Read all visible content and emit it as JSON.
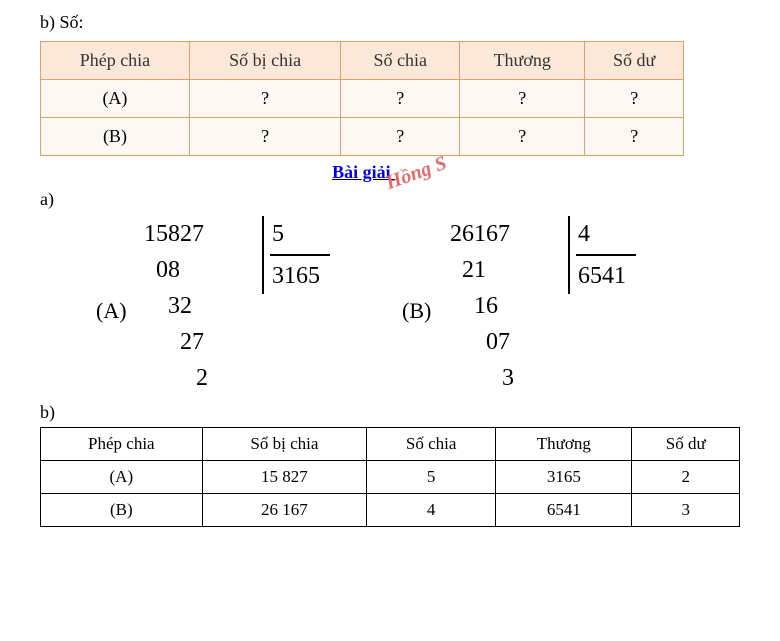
{
  "top_label": "b) Số:",
  "table1": {
    "header_bg": "#fbe8d8",
    "border_color": "#d9a36a",
    "row_bg": "#fdf8f4",
    "headers": [
      "Phép chia",
      "Số bị chia",
      "Số chia",
      "Thương",
      "Số dư"
    ],
    "rows": [
      [
        "(A)",
        "?",
        "?",
        "?",
        "?"
      ],
      [
        "(B)",
        "?",
        "?",
        "?",
        "?"
      ]
    ]
  },
  "bai_giai_label": "Bài giải",
  "bai_giai_color": "#0000ee",
  "watermark_text": "Hồng S",
  "label_a": "a)",
  "divisions": {
    "A": {
      "tag": "(A)",
      "dividend": "15827",
      "divisor": "5",
      "quotient": "3165",
      "steps": [
        "08",
        "32",
        "27",
        "2"
      ],
      "indents": [
        "indent1",
        "indent2",
        "indent3",
        "indent4"
      ]
    },
    "B": {
      "tag": "(B)",
      "dividend": "26167",
      "divisor": "4",
      "quotient": "6541",
      "steps": [
        "21",
        "16",
        "07",
        "3"
      ],
      "indents": [
        "indent1",
        "indent2",
        "indent3",
        "indent4"
      ]
    }
  },
  "label_b2": "b)",
  "table2": {
    "headers": [
      "Phép chia",
      "Số bị chia",
      "Số chia",
      "Thương",
      "Số dư"
    ],
    "rows": [
      [
        "(A)",
        "15 827",
        "5",
        "3165",
        "2"
      ],
      [
        "(B)",
        "26 167",
        "4",
        "6541",
        "3"
      ]
    ]
  }
}
